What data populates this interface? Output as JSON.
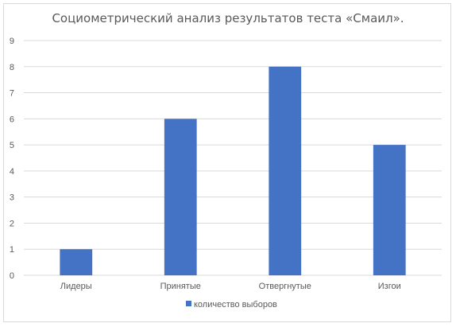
{
  "chart_data": {
    "type": "bar",
    "title": "Социометрический анализ результатов теста «Смаил».",
    "categories": [
      "Лидеры",
      "Принятые",
      "Отвергнутые",
      "Изгои"
    ],
    "series": [
      {
        "name": "количество выборов",
        "values": [
          1,
          6,
          8,
          5
        ],
        "color": "#4472c4"
      }
    ],
    "ylim": [
      0,
      9
    ],
    "yticks": [
      0,
      1,
      2,
      3,
      4,
      5,
      6,
      7,
      8,
      9
    ],
    "grid": true,
    "legend": "bottom"
  }
}
